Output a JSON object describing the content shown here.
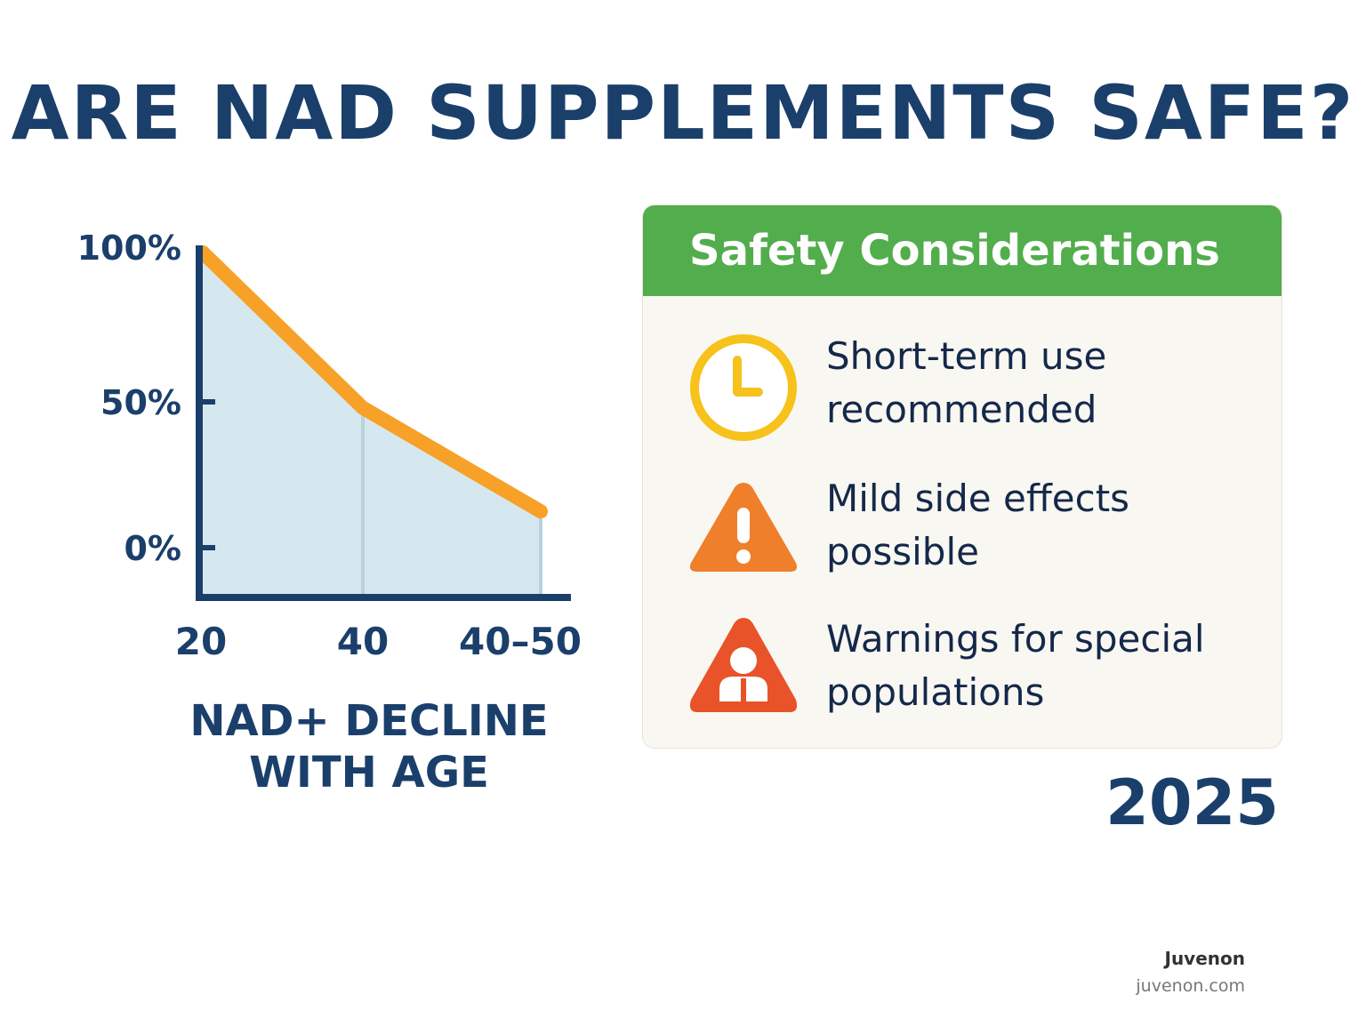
{
  "title": "ARE NAD SUPPLEMENTS SAFE?",
  "chart_data": {
    "type": "area",
    "categories": [
      "20",
      "40",
      "40–50"
    ],
    "values": [
      100,
      52,
      20
    ],
    "y_ticks": [
      "100%",
      "50%",
      "0%"
    ],
    "caption_lines": [
      "NAD+ DECLINE",
      "WITH AGE"
    ],
    "line_color": "#f7a128",
    "fill_color": "#d6e8ef",
    "grid": false
  },
  "safety": {
    "heading": "Safety Considerations",
    "items": [
      {
        "icon": "clock-icon",
        "lines": [
          "Short-term use",
          "recommended"
        ],
        "color": "#f6c21b"
      },
      {
        "icon": "warning-icon",
        "lines": [
          "Mild side effects",
          "possible"
        ],
        "color": "#f07f2c"
      },
      {
        "icon": "person-warning-icon",
        "lines": [
          "Warnings for special",
          "populations"
        ],
        "color": "#e8532a"
      }
    ]
  },
  "year": "2025",
  "brand": {
    "name": "Juvenon",
    "url": "juvenon.com"
  }
}
